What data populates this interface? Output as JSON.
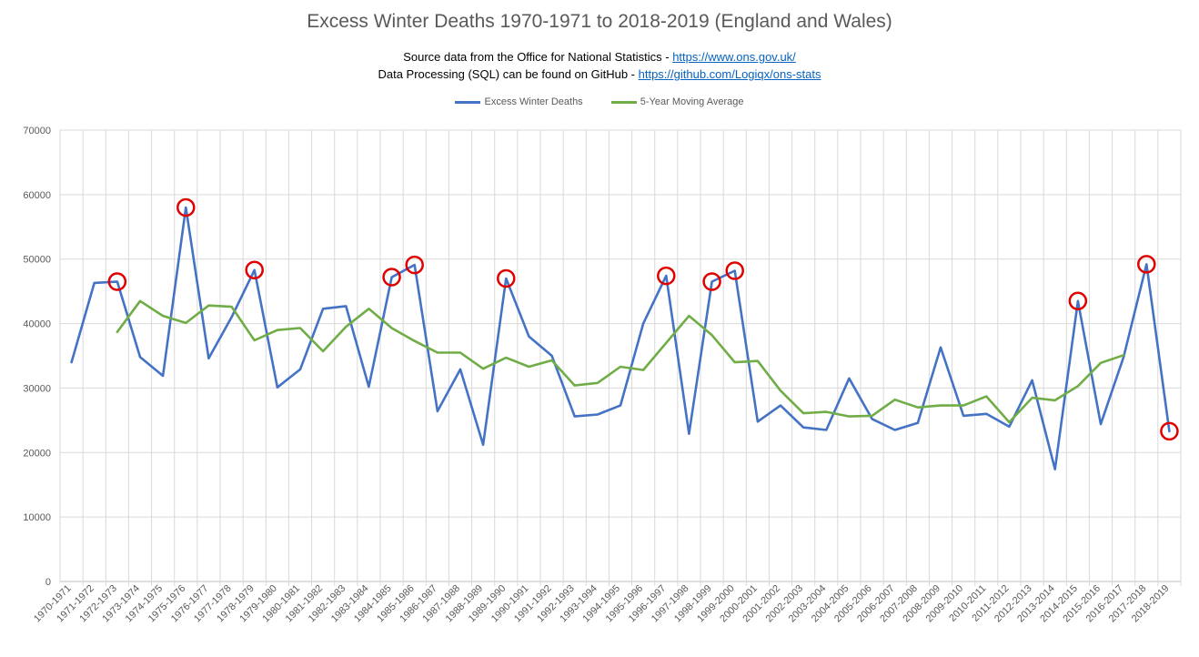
{
  "chart_data": {
    "type": "line",
    "title": "Excess Winter Deaths 1970-1971 to 2018-2019 (England and Wales)",
    "subtitle_lines": [
      {
        "text": "Source data from the Office for National Statistics - ",
        "link": "https://www.ons.gov.uk/"
      },
      {
        "text": "Data Processing (SQL) can be found on GitHub - ",
        "link": "https://github.com/Logiqx/ons-stats"
      }
    ],
    "categories": [
      "1970-1971",
      "1971-1972",
      "1972-1973",
      "1973-1974",
      "1974-1975",
      "1975-1976",
      "1976-1977",
      "1977-1978",
      "1978-1979",
      "1979-1980",
      "1980-1981",
      "1981-1982",
      "1982-1983",
      "1983-1984",
      "1984-1985",
      "1985-1986",
      "1986-1987",
      "1987-1988",
      "1988-1989",
      "1989-1990",
      "1990-1991",
      "1991-1992",
      "1992-1993",
      "1993-1994",
      "1994-1995",
      "1995-1996",
      "1996-1997",
      "1997-1998",
      "1998-1999",
      "1999-2000",
      "2000-2001",
      "2001-2002",
      "2002-2003",
      "2003-2004",
      "2004-2005",
      "2005-2006",
      "2006-2007",
      "2007-2008",
      "2008-2009",
      "2009-2010",
      "2010-2011",
      "2011-2012",
      "2012-2013",
      "2013-2014",
      "2014-2015",
      "2015-2016",
      "2016-2017",
      "2017-2018",
      "2018-2019"
    ],
    "series": [
      {
        "name": "Excess Winter Deaths",
        "color": "#4472c4",
        "values": [
          34000,
          46300,
          46500,
          34800,
          31900,
          58000,
          34600,
          41000,
          48300,
          30100,
          32900,
          42300,
          42700,
          30200,
          47200,
          49100,
          26400,
          32900,
          21200,
          47000,
          38000,
          35000,
          25600,
          25900,
          27300,
          40000,
          47400,
          22900,
          46500,
          48200,
          24800,
          27300,
          23900,
          23500,
          31500,
          25200,
          23500,
          24600,
          36300,
          25700,
          26000,
          24000,
          31200,
          17400,
          43500,
          24400,
          34800,
          49200,
          23300
        ]
      },
      {
        "name": "5-Year Moving Average",
        "color": "#70ad47",
        "values": [
          null,
          null,
          38700,
          43500,
          41200,
          40100,
          42800,
          42600,
          37400,
          39000,
          39300,
          35700,
          39500,
          42300,
          39300,
          37300,
          35500,
          35500,
          33000,
          34700,
          33300,
          34300,
          30400,
          30800,
          33300,
          32800,
          37000,
          41200,
          38200,
          34000,
          34200,
          29600,
          26100,
          26300,
          25600,
          25700,
          28200,
          27000,
          27300,
          27300,
          28700,
          24700,
          28500,
          28100,
          30300,
          33900,
          35100,
          null,
          null
        ]
      }
    ],
    "highlighted_points": [
      "1972-1973",
      "1975-1976",
      "1978-1979",
      "1984-1985",
      "1985-1986",
      "1989-1990",
      "1996-1997",
      "1998-1999",
      "1999-2000",
      "2014-2015",
      "2017-2018",
      "2018-2019"
    ],
    "highlight_color": "#e00000",
    "ylim": [
      0,
      70000
    ],
    "yticks": [
      0,
      10000,
      20000,
      30000,
      40000,
      50000,
      60000,
      70000
    ],
    "grid": true,
    "legend_position": "top",
    "xlabel": "",
    "ylabel": ""
  }
}
